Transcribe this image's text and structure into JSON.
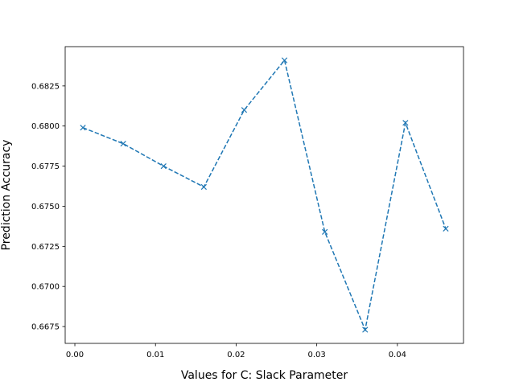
{
  "chart_data": {
    "type": "line",
    "title": "",
    "xlabel": "Values for C: Slack Parameter",
    "ylabel": "Prediction Accuracy",
    "xlim": [
      -0.0012,
      0.0482
    ],
    "ylim": [
      0.66645,
      0.68495
    ],
    "x_ticks": [
      0.0,
      0.01,
      0.02,
      0.03,
      0.04
    ],
    "x_tick_labels": [
      "0.00",
      "0.01",
      "0.02",
      "0.03",
      "0.04"
    ],
    "y_ticks": [
      0.6675,
      0.67,
      0.6725,
      0.675,
      0.6775,
      0.68,
      0.6825
    ],
    "y_tick_labels": [
      "0.6675",
      "0.6700",
      "0.6725",
      "0.6750",
      "0.6775",
      "0.6800",
      "0.6825"
    ],
    "grid": false,
    "series": [
      {
        "line_style": "dashed",
        "marker": "x",
        "color": "#1f77b4",
        "x": [
          0.001,
          0.006,
          0.011,
          0.016,
          0.021,
          0.026,
          0.031,
          0.036,
          0.041,
          0.046
        ],
        "y": [
          0.6799,
          0.6789,
          0.6775,
          0.6762,
          0.681,
          0.6841,
          0.6734,
          0.6673,
          0.6802,
          0.6736
        ]
      }
    ]
  }
}
